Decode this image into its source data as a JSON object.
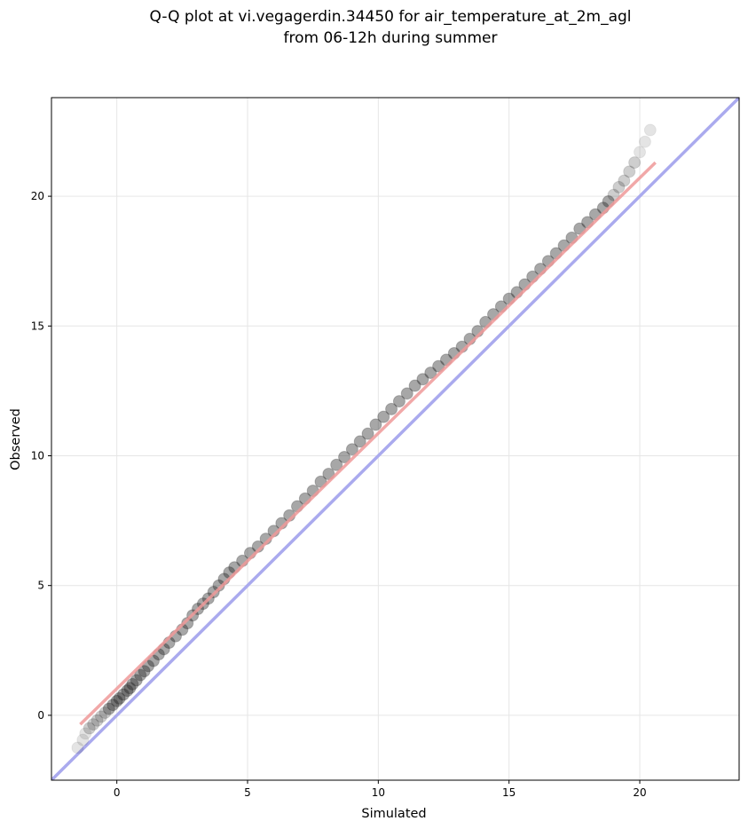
{
  "chart_data": {
    "type": "scatter",
    "title": "Q-Q plot at vi.vegagerdin.34450 for air_temperature_at_2m_agl",
    "subtitle": "from 06-12h during summer",
    "xlabel": "Simulated",
    "ylabel": "Observed",
    "xlim": [
      -2.5,
      23.8
    ],
    "ylim": [
      -2.5,
      23.8
    ],
    "xticks": [
      0,
      5,
      10,
      15,
      20
    ],
    "yticks": [
      0,
      5,
      10,
      15,
      20
    ],
    "grid": true,
    "identity_line": {
      "x": [
        -2.5,
        23.8
      ],
      "y": [
        -2.5,
        23.8
      ],
      "color": "#aaaaee"
    },
    "fit_line": {
      "x": [
        -1.4,
        20.6
      ],
      "y": [
        -0.35,
        21.3
      ],
      "color": "#ee9999"
    },
    "points": {
      "color": "#222222",
      "x": [
        -1.5,
        -1.3,
        -1.2,
        -1.05,
        -0.9,
        -0.75,
        -0.6,
        -0.45,
        -0.3,
        -0.15,
        0.0,
        0.1,
        0.25,
        0.4,
        0.5,
        0.6,
        0.75,
        0.9,
        1.05,
        1.2,
        1.4,
        1.6,
        1.8,
        2.0,
        2.25,
        2.5,
        2.7,
        2.9,
        3.1,
        3.3,
        3.5,
        3.7,
        3.9,
        4.1,
        4.3,
        4.5,
        4.8,
        5.1,
        5.4,
        5.7,
        6.0,
        6.3,
        6.6,
        6.9,
        7.2,
        7.5,
        7.8,
        8.1,
        8.4,
        8.7,
        9.0,
        9.3,
        9.6,
        9.9,
        10.2,
        10.5,
        10.8,
        11.1,
        11.4,
        11.7,
        12.0,
        12.3,
        12.6,
        12.9,
        13.2,
        13.5,
        13.8,
        14.1,
        14.4,
        14.7,
        15.0,
        15.3,
        15.6,
        15.9,
        16.2,
        16.5,
        16.8,
        17.1,
        17.4,
        17.7,
        18.0,
        18.3,
        18.6,
        18.8,
        19.0,
        19.2,
        19.4,
        19.6,
        19.8,
        20.0,
        20.2,
        20.4
      ],
      "y": [
        -1.25,
        -0.95,
        -0.7,
        -0.5,
        -0.35,
        -0.2,
        -0.05,
        0.1,
        0.25,
        0.4,
        0.55,
        0.65,
        0.8,
        0.95,
        1.05,
        1.2,
        1.35,
        1.55,
        1.7,
        1.9,
        2.1,
        2.35,
        2.55,
        2.8,
        3.05,
        3.3,
        3.55,
        3.85,
        4.1,
        4.3,
        4.5,
        4.75,
        5.0,
        5.25,
        5.5,
        5.7,
        5.95,
        6.25,
        6.5,
        6.8,
        7.1,
        7.4,
        7.7,
        8.05,
        8.35,
        8.65,
        9.0,
        9.3,
        9.65,
        9.95,
        10.25,
        10.55,
        10.85,
        11.2,
        11.5,
        11.8,
        12.1,
        12.4,
        12.7,
        12.95,
        13.2,
        13.45,
        13.7,
        13.95,
        14.2,
        14.5,
        14.8,
        15.15,
        15.45,
        15.75,
        16.05,
        16.3,
        16.6,
        16.9,
        17.2,
        17.5,
        17.8,
        18.1,
        18.4,
        18.75,
        19.0,
        19.3,
        19.55,
        19.8,
        20.05,
        20.35,
        20.6,
        20.95,
        21.3,
        21.7,
        22.1,
        22.55
      ]
    }
  }
}
